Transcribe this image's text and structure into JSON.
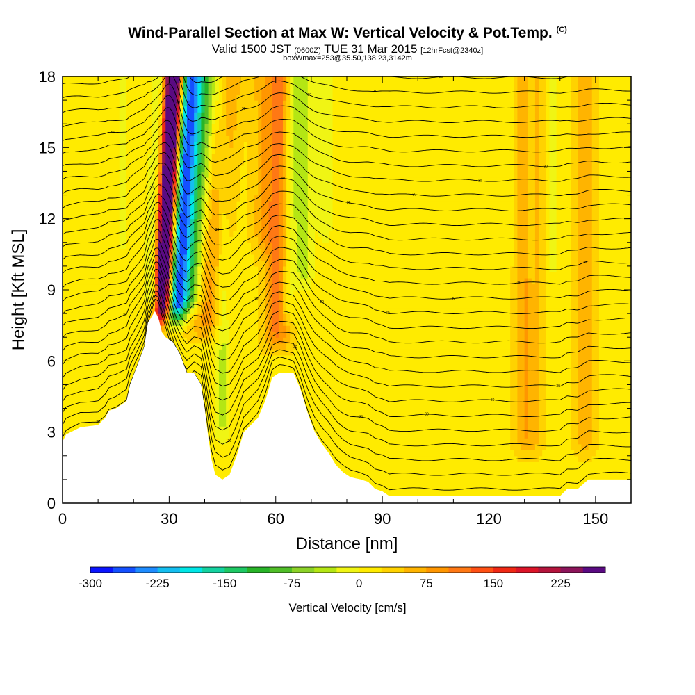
{
  "title": {
    "main": "Wind-Parallel Section at Max W: Vertical Velocity & Pot.Temp.",
    "copyright": "(C)",
    "valid_prefix": "Valid 1500 JST",
    "valid_utc": "(0600Z)",
    "valid_date": "TUE 31 Mar 2015",
    "forecast": "[12hrFcst@2340z]",
    "box": "boxWmax=253@35.50,138.23,3142m"
  },
  "chart_data": {
    "type": "heatmap",
    "xlabel": "Distance [nm]",
    "ylabel": "Height [Kft MSL]",
    "xlim": [
      0,
      160
    ],
    "ylim": [
      0,
      18
    ],
    "x_ticks": [
      0,
      30,
      60,
      90,
      120,
      150
    ],
    "y_ticks": [
      0,
      3,
      6,
      9,
      12,
      15,
      18
    ],
    "colorbar": {
      "label": "Vertical Velocity [cm/s]",
      "tick_labels": [
        "-300",
        "-225",
        "-150",
        "-75",
        "0",
        "75",
        "150",
        "225"
      ],
      "tick_values": [
        -300,
        -225,
        -150,
        -75,
        0,
        75,
        150,
        225
      ],
      "range": [
        -300,
        275
      ],
      "colors": [
        "#0a14ff",
        "#1450ff",
        "#1e8cff",
        "#14bef0",
        "#00e6e6",
        "#14d2a0",
        "#1ec864",
        "#28b428",
        "#50be28",
        "#8cd228",
        "#b4e614",
        "#f0f514",
        "#ffeb00",
        "#ffd200",
        "#ffb400",
        "#ff9600",
        "#ff7814",
        "#ff5014",
        "#f02814",
        "#dc1428",
        "#b4143c",
        "#8c145a",
        "#5a0a82"
      ]
    },
    "background_value": 15,
    "terrain_kft": [
      [
        0,
        2.6
      ],
      [
        1,
        2.9
      ],
      [
        5,
        3.2
      ],
      [
        10,
        3.3
      ],
      [
        12,
        3.6
      ],
      [
        13,
        3.9
      ],
      [
        15,
        4.0
      ],
      [
        18,
        4.3
      ],
      [
        19,
        5.0
      ],
      [
        21,
        5.8
      ],
      [
        23,
        6.6
      ],
      [
        24,
        7.6
      ],
      [
        26,
        8.1
      ],
      [
        27,
        7.8
      ],
      [
        28,
        7.2
      ],
      [
        29,
        7.0
      ],
      [
        31,
        6.8
      ],
      [
        33,
        6.3
      ],
      [
        34,
        5.9
      ],
      [
        35,
        5.5
      ],
      [
        37,
        5.5
      ],
      [
        39,
        5.0
      ],
      [
        40,
        4.0
      ],
      [
        41,
        2.8
      ],
      [
        42,
        1.8
      ],
      [
        43,
        1.2
      ],
      [
        45,
        1.0
      ],
      [
        47,
        1.2
      ],
      [
        49,
        2.0
      ],
      [
        51,
        3.0
      ],
      [
        53,
        3.3
      ],
      [
        55,
        3.6
      ],
      [
        57,
        4.3
      ],
      [
        59,
        5.3
      ],
      [
        61,
        5.5
      ],
      [
        65,
        5.5
      ],
      [
        67,
        4.8
      ],
      [
        69,
        3.8
      ],
      [
        71,
        3.0
      ],
      [
        73,
        2.5
      ],
      [
        75,
        2.1
      ],
      [
        77,
        1.6
      ],
      [
        79,
        1.3
      ],
      [
        81,
        1.1
      ],
      [
        84,
        1.0
      ],
      [
        86,
        0.9
      ],
      [
        88,
        0.6
      ],
      [
        90,
        0.5
      ],
      [
        92,
        0.3
      ],
      [
        100,
        0.3
      ],
      [
        140,
        0.3
      ],
      [
        142,
        0.6
      ],
      [
        145,
        0.6
      ],
      [
        148,
        1.0
      ],
      [
        160,
        1.0
      ]
    ],
    "features": [
      {
        "x": 27.5,
        "half_width": 2.0,
        "tilt": 0.32,
        "z_min": 7.0,
        "value": 260
      },
      {
        "x": 26.8,
        "half_width": 1.8,
        "tilt": 0.3,
        "z_min": 8.5,
        "value": 140
      },
      {
        "x": 29.2,
        "half_width": 1.8,
        "tilt": 0.34,
        "z_min": 7.5,
        "value": 175
      },
      {
        "x": 31.3,
        "half_width": 3.2,
        "tilt": 0.45,
        "z_min": 7.2,
        "value": -250
      },
      {
        "x": 25.8,
        "half_width": 2.5,
        "tilt": 0.3,
        "z_min": 8.0,
        "value": -90
      },
      {
        "x": 35.0,
        "half_width": 4.0,
        "tilt": 0.55,
        "z_min": 7.5,
        "value": -110
      },
      {
        "x": 39.5,
        "half_width": 4.5,
        "tilt": 0.55,
        "z_min": 6.5,
        "value": 80
      },
      {
        "x": 60.5,
        "half_width": 4.0,
        "tilt": 0.05,
        "z_min": 6.0,
        "value": 95
      },
      {
        "x": 63.5,
        "half_width": 2.0,
        "tilt": 0.1,
        "z_min": 7.0,
        "value": -60
      },
      {
        "x": 67.5,
        "half_width": 3.0,
        "tilt": 0.05,
        "z_min": 8.5,
        "value": -50
      },
      {
        "x": 74.0,
        "half_width": 2.0,
        "tilt": 0.0,
        "z_min": 10.5,
        "value": -35
      },
      {
        "x": 56.0,
        "half_width": 3.0,
        "tilt": 0.0,
        "z_min": 10.0,
        "value": 35
      },
      {
        "x": 45.0,
        "half_width": 2.0,
        "tilt": 0.0,
        "z_min": 2.0,
        "value": -45
      },
      {
        "x": 17.0,
        "half_width": 1.5,
        "tilt": 0.0,
        "z_min": 10.0,
        "value": -30
      },
      {
        "x": 131.0,
        "half_width": 4.0,
        "tilt": 0.0,
        "z_min": 1.5,
        "value": 65
      },
      {
        "x": 147.0,
        "half_width": 3.0,
        "tilt": 0.0,
        "z_min": 1.5,
        "value": 55
      },
      {
        "x": 138.0,
        "half_width": 1.0,
        "tilt": 0.0,
        "z_min": 9.0,
        "value": -35
      },
      {
        "x": 126.0,
        "half_width": 1.0,
        "tilt": 0.0,
        "z_min": 9.5,
        "value": -30
      },
      {
        "x": 132.0,
        "half_width": 1.0,
        "tilt": 0.0,
        "z_min": 8.5,
        "value": -30
      },
      {
        "x": 132.0,
        "half_width": 1.0,
        "tilt": 0.0,
        "z_min": 2.0,
        "value": -10
      }
    ],
    "contours": {
      "levels": 34,
      "base_kft": 0.6,
      "spacing_kft": 0.62,
      "label": "30"
    }
  }
}
